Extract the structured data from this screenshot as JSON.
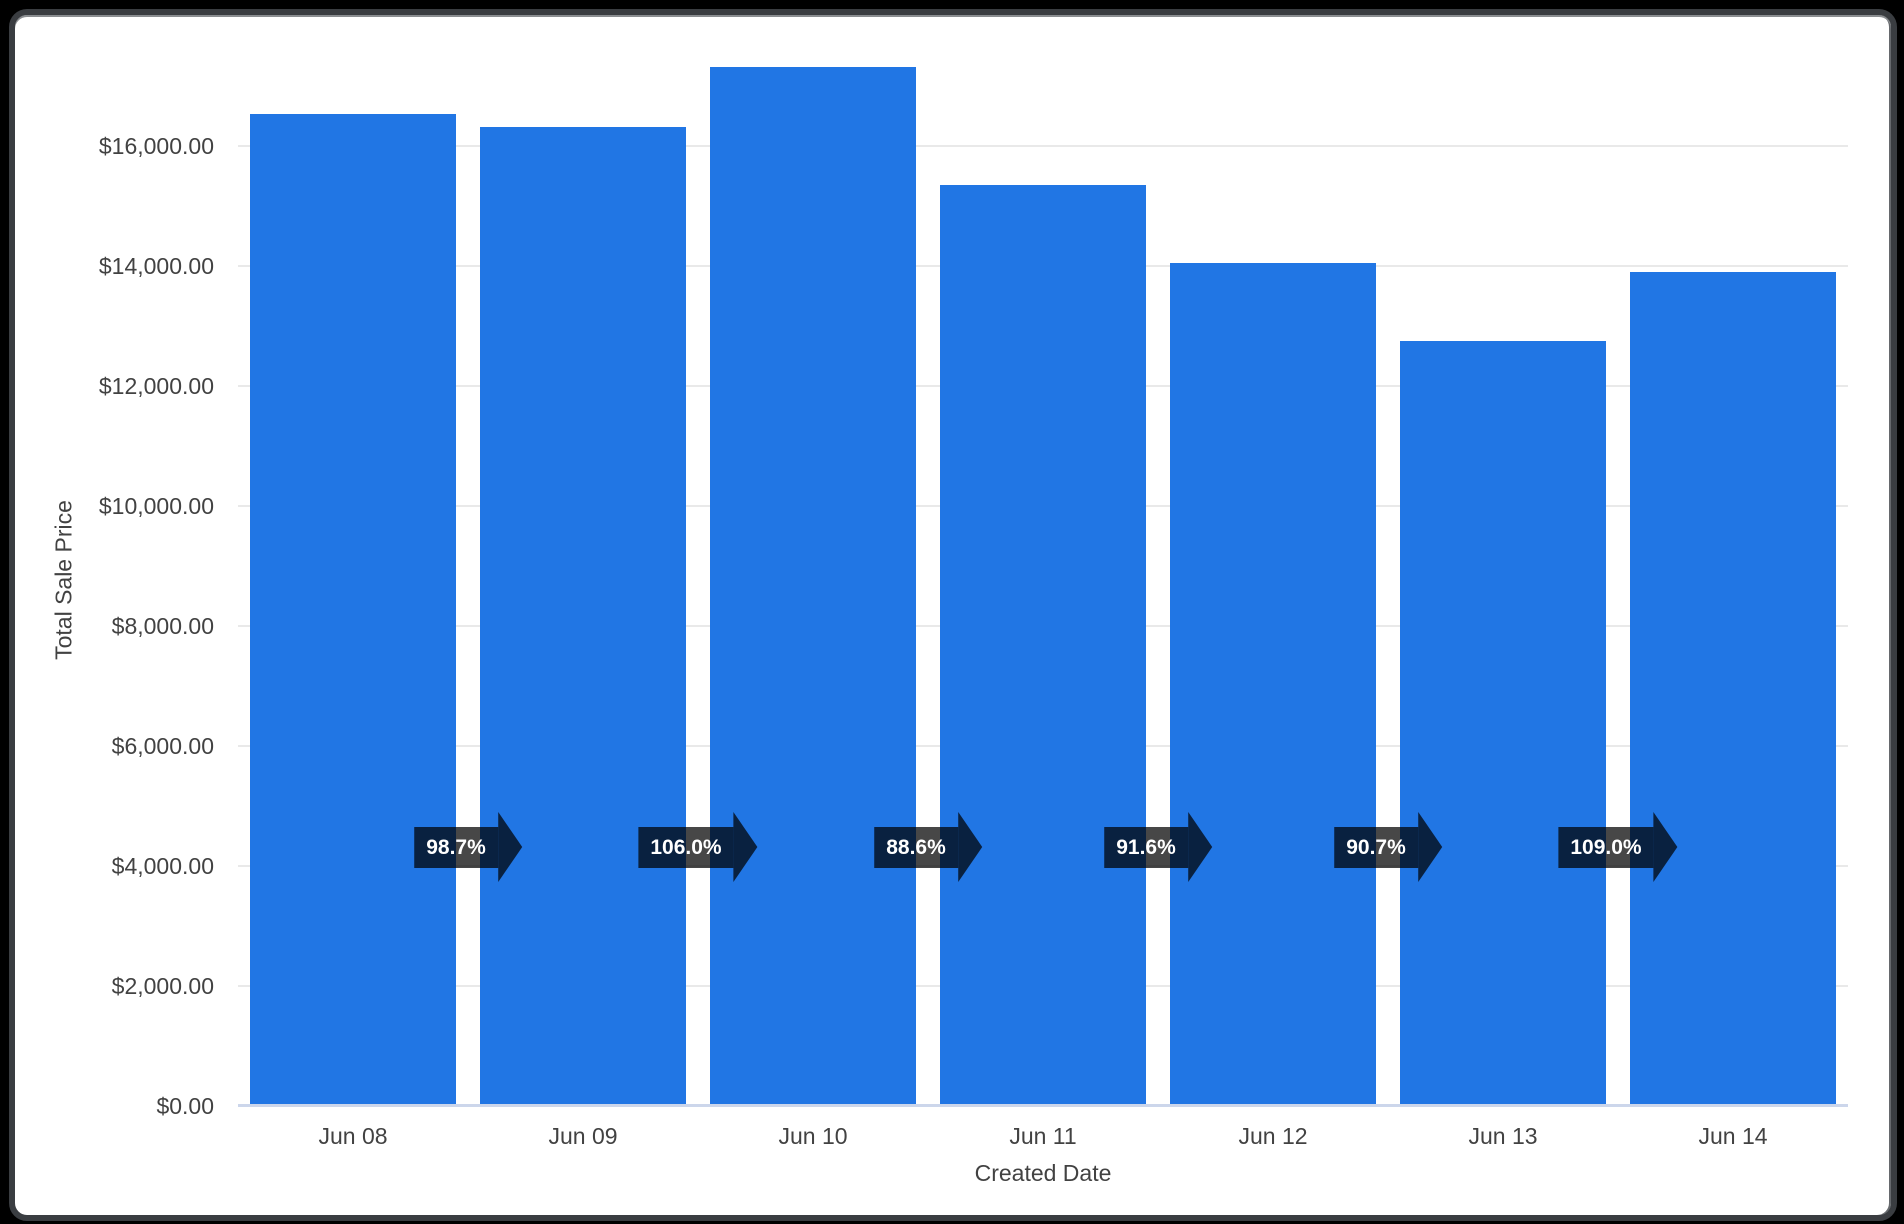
{
  "frame": {
    "background_color": "#000000",
    "card_background": "#ffffff",
    "card_border_color": "#3a3d41"
  },
  "chart_data": {
    "type": "bar",
    "title": "",
    "xlabel": "Created Date",
    "ylabel": "Total Sale Price",
    "categories": [
      "Jun 08",
      "Jun 09",
      "Jun 10",
      "Jun 11",
      "Jun 12",
      "Jun 13",
      "Jun 14"
    ],
    "series": [
      {
        "name": "Total Sale Price",
        "values": [
          16530,
          16320,
          17320,
          15350,
          14050,
          12750,
          13900
        ]
      }
    ],
    "percent_change_badges": [
      "98.7%",
      "106.0%",
      "88.6%",
      "91.6%",
      "90.7%",
      "109.0%"
    ],
    "y_ticks": [
      "$0.00",
      "$2,000.00",
      "$4,000.00",
      "$6,000.00",
      "$8,000.00",
      "$10,000.00",
      "$12,000.00",
      "$14,000.00",
      "$16,000.00"
    ],
    "ylim": [
      0,
      18000
    ],
    "y_tick_step": 2000,
    "grid": true,
    "legend_position": "none",
    "bar_color": "#2176E4",
    "badge_background": "rgba(0,0,0,0.72)",
    "badge_text_color": "#ffffff",
    "axis_text_color": "#424242",
    "gridline_color": "#e9e9e9",
    "baseline_color": "#ccd6eb"
  }
}
